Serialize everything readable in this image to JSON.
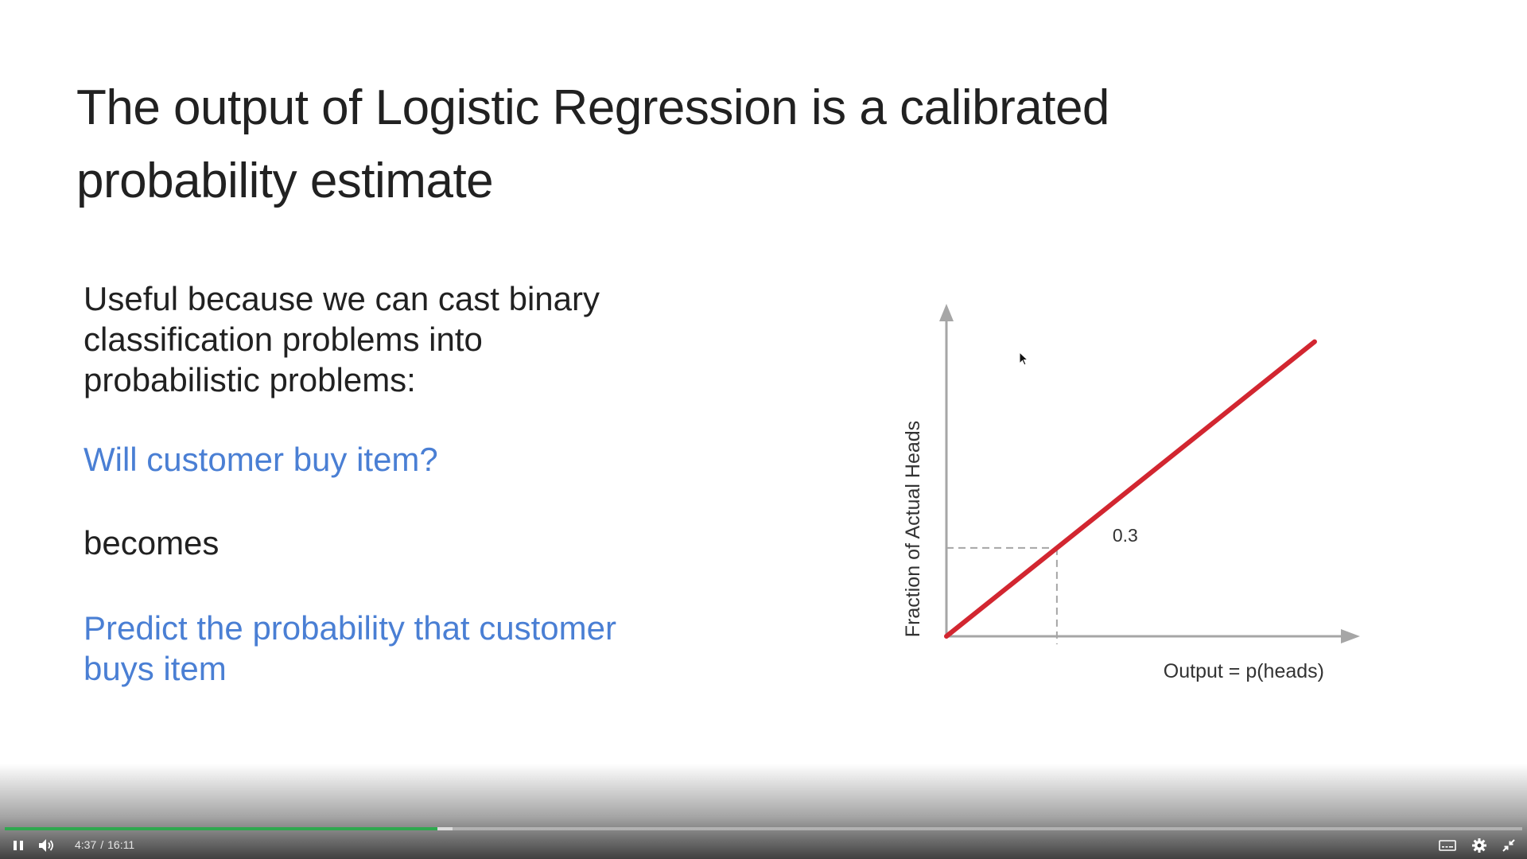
{
  "slide": {
    "title_line1": "The output of Logistic Regression is a calibrated",
    "title_line2": "probability estimate",
    "intro_line1": "Useful because we can cast binary",
    "intro_line2": "classification problems into",
    "intro_line3": "probabilistic problems:",
    "question": "Will customer buy item?",
    "becomes": "becomes",
    "prediction_line1": "Predict the probability that customer",
    "prediction_line2": "buys item",
    "colors": {
      "title": "#212121",
      "body": "#212121",
      "accent_blue": "#4a7fd4",
      "curve_red": "#d22630",
      "axis_gray": "#a6a6a6"
    }
  },
  "chart_data": {
    "type": "line",
    "xlabel": "Output = p(heads)",
    "ylabel": "Fraction of Actual Heads",
    "annotations": [
      {
        "text": "0.3",
        "x": 0.3,
        "y": 0.3
      }
    ],
    "series": [
      {
        "x": [
          0,
          1
        ],
        "values": [
          0,
          1
        ]
      }
    ],
    "xlim": [
      0,
      1.08
    ],
    "ylim": [
      0,
      1.08
    ],
    "grid": false,
    "legend": "none"
  },
  "player": {
    "current_time": "4:37",
    "separator": "/",
    "duration": "16:11",
    "progress_fraction": 0.285,
    "buffered_fraction": 0.295,
    "icons": {
      "play_pause": "pause-icon",
      "volume": "volume-icon",
      "captions": "captions-icon",
      "settings": "gear-icon",
      "fullscreen": "exit-fullscreen-icon"
    }
  }
}
